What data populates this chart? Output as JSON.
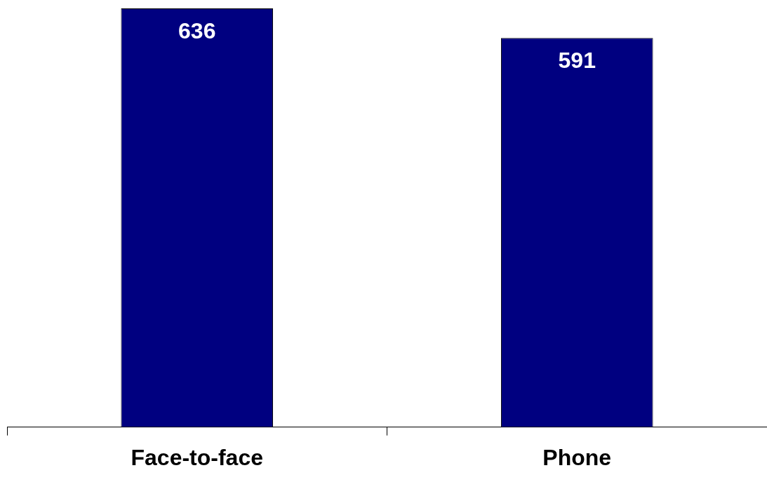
{
  "chart_data": {
    "type": "bar",
    "categories": [
      "Face-to-face",
      "Phone"
    ],
    "values": [
      636,
      591
    ],
    "color": "#000080",
    "data_labels": true,
    "grid": false,
    "legend": false,
    "tick_labels": "x"
  }
}
